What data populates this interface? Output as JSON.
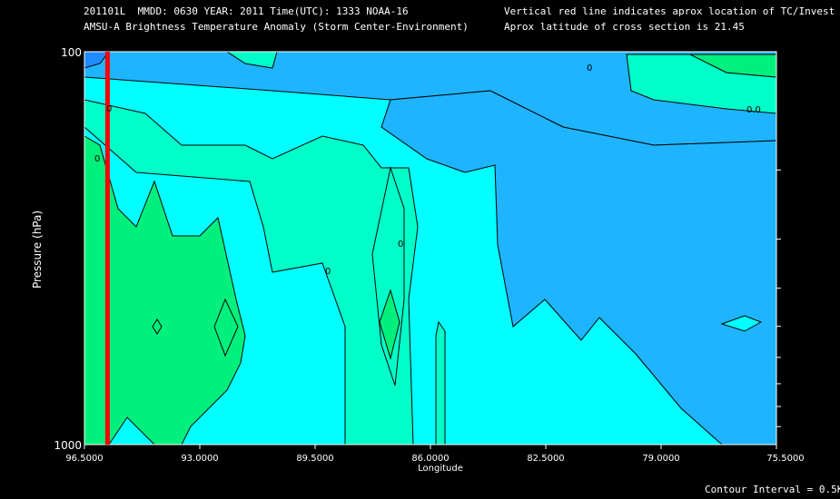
{
  "header": {
    "line1": "201101L  MMDD: 0630 YEAR: 2011 Time(UTC): 1333 NOAA-16",
    "line2": "AMSU-A Brightness Temperature Anomaly (Storm Center-Environment)",
    "note1": "Vertical red line indicates aprox location of TC/Invest",
    "note2": "Aprox latitude of cross section is 21.45"
  },
  "footer": {
    "contour_interval": "Contour Interval = 0.5K"
  },
  "chart_data": {
    "type": "contour",
    "title": "AMSU-A Brightness Temperature Anomaly (Storm Center-Environment)",
    "xlabel": "Longitude",
    "ylabel": "Pressure (hPa)",
    "x_ticks": [
      "96.5000",
      "93.0000",
      "89.5000",
      "86.0000",
      "82.5000",
      "79.0000",
      "75.5000"
    ],
    "y_ticks": [
      "100",
      "1000"
    ],
    "xlim": [
      96.5,
      75.5
    ],
    "ylim": [
      1000,
      100
    ],
    "y_scale": "log",
    "storm_longitude": 95.8,
    "contour_interval_K": 0.5,
    "contour_labels": [
      "0.0",
      "0",
      "0",
      "0",
      "0",
      "0"
    ],
    "colors": {
      "below_minus_0_5": "#1EB4FF",
      "minus_0_5_to_0": "#00FFFF",
      "0_to_0_5": "#00FFC8",
      "0_5_to_1_0": "#00F07D",
      "storm_line": "#FF0000"
    }
  }
}
